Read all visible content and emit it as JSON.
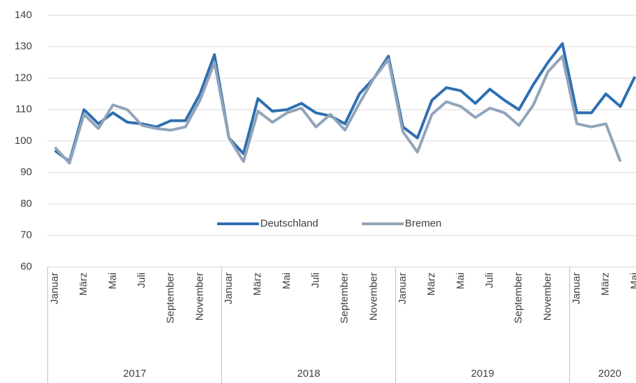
{
  "chart_data": {
    "type": "line",
    "categories": [
      "Januar",
      null,
      "März",
      null,
      "Mai",
      null,
      "Juli",
      null,
      "September",
      null,
      "November",
      null,
      "Januar",
      null,
      "März",
      null,
      "Mai",
      null,
      "Juli",
      null,
      "September",
      null,
      "November",
      null,
      "Januar",
      null,
      "März",
      null,
      "Mai",
      null,
      "Juli",
      null,
      "September",
      null,
      "November",
      null,
      "Januar",
      null,
      "März",
      null,
      "Mai"
    ],
    "x_groups": [
      "2017",
      "2018",
      "2019",
      "2020"
    ],
    "series": [
      {
        "name": "Deutschland",
        "color": "#2e6fb0",
        "values": [
          97,
          93.5,
          110,
          105.5,
          109,
          106,
          105.5,
          104.5,
          106.5,
          106.5,
          115,
          127.5,
          101,
          96,
          113.5,
          109.5,
          110,
          112,
          109,
          108,
          105.5,
          115,
          120,
          127,
          104.5,
          101,
          113,
          117,
          116,
          112,
          116.5,
          113,
          110,
          118,
          125,
          131,
          109,
          109,
          115,
          111,
          120.5
        ]
      },
      {
        "name": "Bremen",
        "color": "#91a4b9",
        "values": [
          98,
          93,
          108.5,
          104,
          111.5,
          110,
          105,
          104,
          103.5,
          104.5,
          113,
          125,
          101,
          93.5,
          109.5,
          106,
          109,
          110.5,
          104.5,
          108.5,
          103.5,
          112,
          120,
          126,
          103,
          96.5,
          108.5,
          112.5,
          111,
          107.5,
          110.5,
          109,
          105,
          111.5,
          122,
          127,
          105.5,
          104.5,
          105.5,
          93.5,
          null
        ]
      }
    ],
    "ylim": [
      60,
      140
    ],
    "yticks": [
      60,
      70,
      80,
      90,
      100,
      110,
      120,
      130,
      140
    ],
    "grid": true,
    "legend": "bottom"
  }
}
